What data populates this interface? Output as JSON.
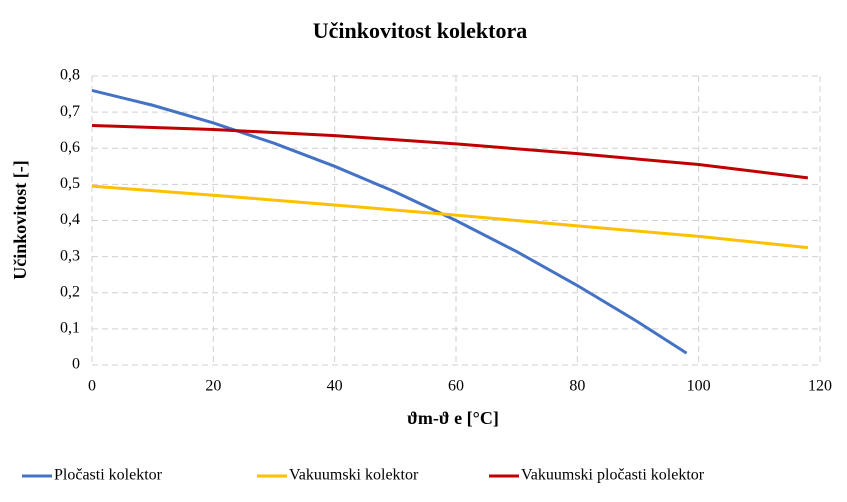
{
  "chart_data": {
    "type": "line",
    "title": "Učinkovitost kolektora",
    "xlabel": "ϑm-ϑ e [°C]",
    "ylabel": "Učinkovitost [-]",
    "xlim": [
      0,
      120
    ],
    "xticks": [
      0,
      20,
      40,
      60,
      80,
      100,
      120
    ],
    "ylim": [
      0,
      0.8
    ],
    "yticks": [
      0,
      {
        "value": 0.1,
        "label": "0,1"
      },
      {
        "value": 0.2,
        "label": "0,2"
      },
      {
        "value": 0.3,
        "label": "0,3"
      },
      {
        "value": 0.4,
        "label": "0,4"
      },
      {
        "value": 0.5,
        "label": "0,5"
      },
      {
        "value": 0.6,
        "label": "0,6"
      },
      {
        "value": 0.7,
        "label": "0,7"
      },
      {
        "value": 0.8,
        "label": "0,8"
      }
    ],
    "grid": true,
    "legend": "bottom",
    "series": [
      {
        "name": "Pločasti kolektor",
        "color": "#4472c4",
        "x": [
          0,
          10,
          20,
          30,
          40,
          50,
          60,
          70,
          80,
          90,
          98
        ],
        "values": [
          0.76,
          0.719,
          0.67,
          0.614,
          0.55,
          0.479,
          0.4,
          0.314,
          0.22,
          0.119,
          0.033
        ]
      },
      {
        "name": "Vakuumski kolektor",
        "color": "#ffc000",
        "x": [
          0,
          20,
          40,
          60,
          80,
          100,
          118
        ],
        "values": [
          0.495,
          0.47,
          0.443,
          0.415,
          0.385,
          0.356,
          0.325
        ]
      },
      {
        "name": "Vakuumski pločasti kolektor",
        "color": "#c00000",
        "x": [
          0,
          20,
          40,
          60,
          80,
          100,
          118
        ],
        "values": [
          0.663,
          0.652,
          0.635,
          0.612,
          0.585,
          0.555,
          0.518
        ]
      }
    ]
  }
}
